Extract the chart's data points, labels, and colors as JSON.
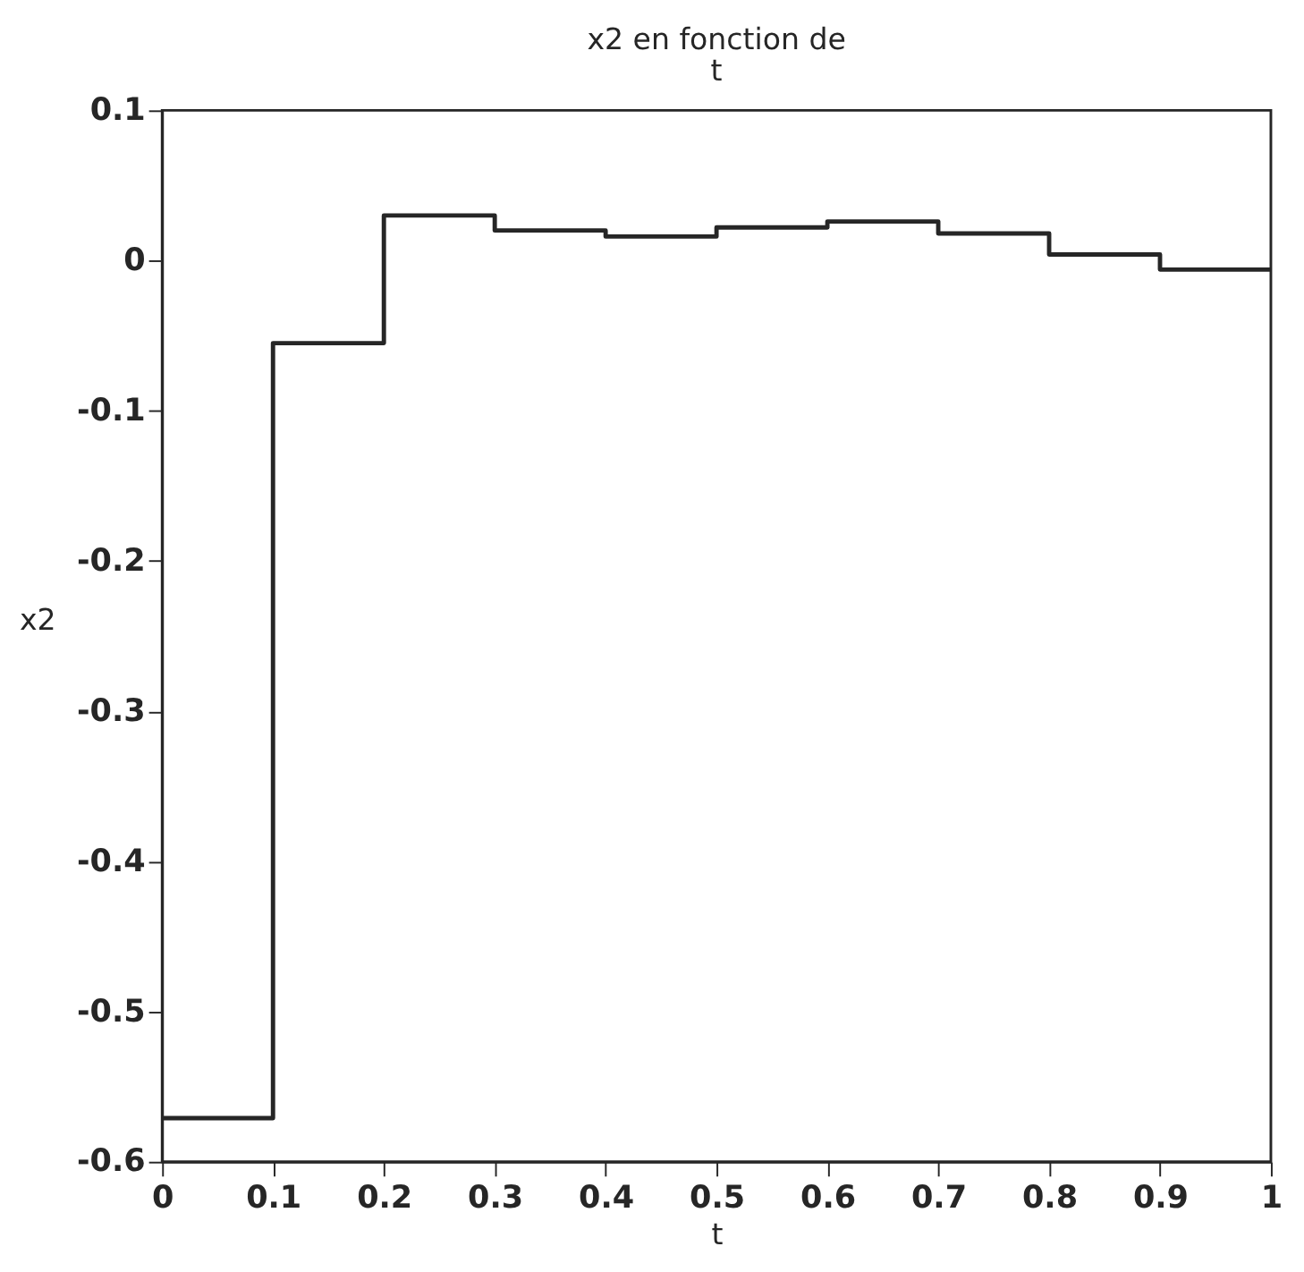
{
  "chart_data": {
    "type": "step",
    "title": "x2 en fonction de\nt",
    "xlabel": "t",
    "ylabel": "x2",
    "x": [
      0,
      0.1,
      0.2,
      0.3,
      0.4,
      0.5,
      0.6,
      0.7,
      0.8,
      0.9,
      1
    ],
    "series": [
      {
        "color": "#262626",
        "values": [
          -0.571,
          -0.055,
          0.03,
          0.02,
          0.016,
          0.022,
          0.026,
          0.018,
          0.004,
          -0.006,
          -0.006
        ]
      }
    ],
    "xlim": [
      0,
      1
    ],
    "ylim": [
      -0.6,
      0.1
    ],
    "xticks": [
      0,
      0.1,
      0.2,
      0.3,
      0.4,
      0.5,
      0.6,
      0.7,
      0.8,
      0.9,
      1
    ],
    "yticks": [
      -0.6,
      -0.5,
      -0.4,
      -0.3,
      -0.2,
      -0.1,
      0,
      0.1
    ],
    "grid": false,
    "legend": false,
    "marker": "none",
    "line_style": "solid"
  }
}
